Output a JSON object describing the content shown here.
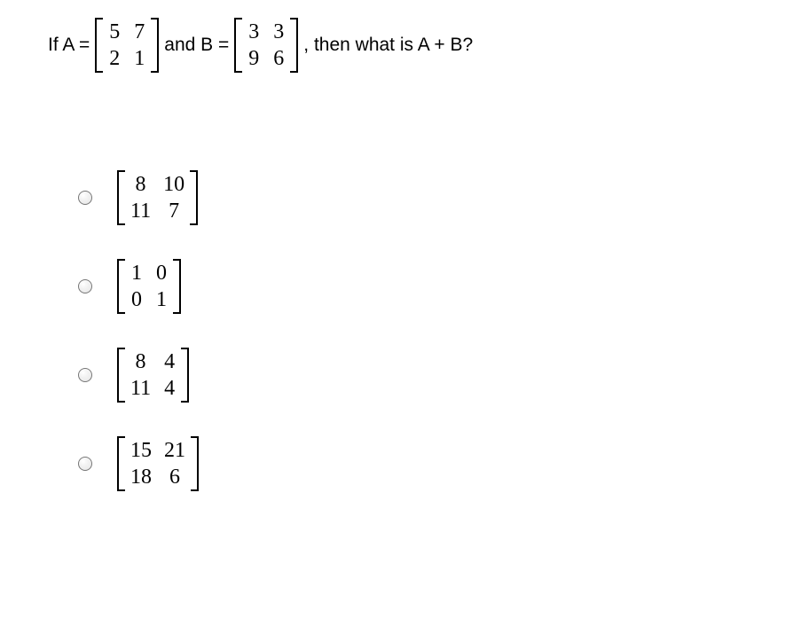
{
  "question": {
    "prefix": "If A =",
    "matrixA": [
      [
        "5",
        "7"
      ],
      [
        "2",
        "1"
      ]
    ],
    "mid1": "and B =",
    "matrixB": [
      [
        "3",
        "3"
      ],
      [
        "9",
        "6"
      ]
    ],
    "suffix": ", then what is A + B?"
  },
  "options": [
    {
      "matrix": [
        [
          "8",
          "10"
        ],
        [
          "11",
          "7"
        ]
      ]
    },
    {
      "matrix": [
        [
          "1",
          "0"
        ],
        [
          "0",
          "1"
        ]
      ]
    },
    {
      "matrix": [
        [
          "8",
          "4"
        ],
        [
          "11",
          "4"
        ]
      ]
    },
    {
      "matrix": [
        [
          "15",
          "21"
        ],
        [
          "18",
          "6"
        ]
      ]
    }
  ],
  "colors": {
    "text": "#000000",
    "background": "#ffffff",
    "radio_border": "#767676"
  },
  "font": {
    "body": "Arial, Helvetica, sans-serif",
    "math": "Georgia, 'Times New Roman', serif",
    "question_fontsize": 21,
    "matrix_fontsize": 24
  }
}
